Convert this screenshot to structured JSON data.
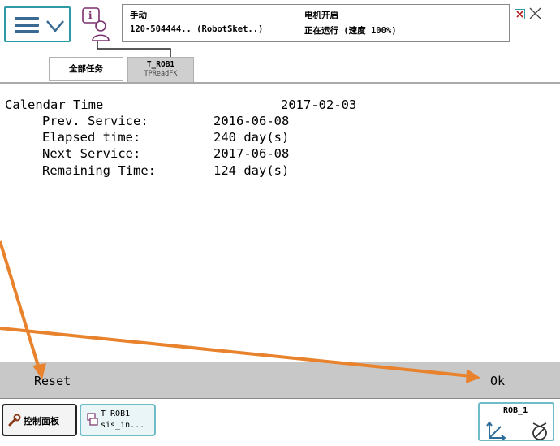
{
  "header": {
    "mode": "手动",
    "program": "120-504444.. (RobotSket..)",
    "motor_status": "电机开启",
    "running_status": "正在运行 (速度 100%)"
  },
  "tabs": [
    {
      "label": "全部任务"
    },
    {
      "label": "T_ROB1",
      "sublabel": "TPReadFK"
    }
  ],
  "content": {
    "calendar_label": "Calendar Time",
    "calendar_value": "2017-02-03",
    "rows": [
      {
        "label": "Prev. Service:",
        "value": "2016-06-08"
      },
      {
        "label": "Elapsed time:",
        "value": "240 day(s)"
      },
      {
        "label": "Next Service:",
        "value": "2017-06-08"
      },
      {
        "label": "Remaining Time:",
        "value": "124 day(s)"
      }
    ]
  },
  "buttons": {
    "reset": "Reset",
    "ok": "Ok"
  },
  "taskbar": {
    "control_panel": "控制面板",
    "task_title": "T_ROB1",
    "task_sub": "sis_in...",
    "robot": "ROB_1"
  },
  "colors": {
    "accent": "#2e9aa6",
    "annotation_arrow": "#e8822c",
    "button_bar": "#c8c8c8"
  }
}
